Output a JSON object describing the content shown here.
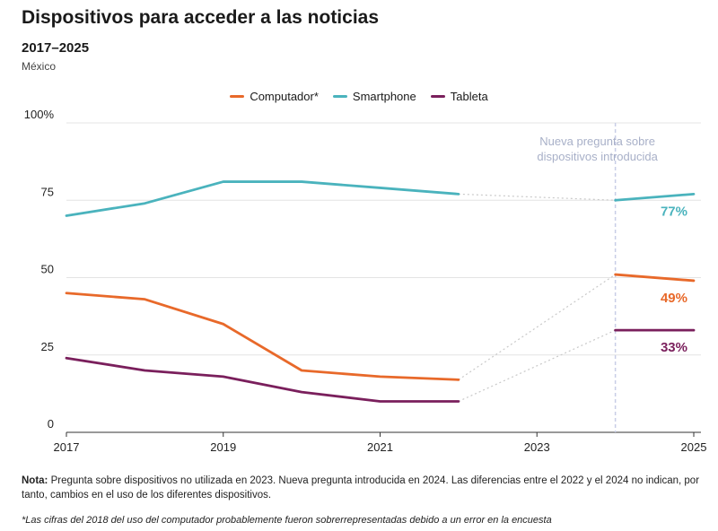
{
  "header": {
    "title": "Dispositivos para acceder a las noticias",
    "subtitle": "2017–2025",
    "region": "México"
  },
  "legend": [
    {
      "label": "Computador*",
      "color": "#e8692a"
    },
    {
      "label": "Smartphone",
      "color": "#4ab3bd"
    },
    {
      "label": "Tableta",
      "color": "#7a1f5c"
    }
  ],
  "chart_data": {
    "type": "line",
    "title": "Dispositivos para acceder a las noticias",
    "xlabel": "",
    "ylabel": "",
    "xlim": [
      2017,
      2025
    ],
    "ylim": [
      0,
      100
    ],
    "x_ticks": [
      "2017",
      "2019",
      "2021",
      "2023",
      "2025"
    ],
    "y_ticks": [
      "0",
      "25",
      "50",
      "75",
      "100%"
    ],
    "annotation": {
      "text_line1": "Nueva pregunta sobre",
      "text_line2": "dispositivos introducida",
      "x": 2024
    },
    "series": [
      {
        "name": "Computador*",
        "color": "#e8692a",
        "before": {
          "x": [
            2017,
            2018,
            2019,
            2020,
            2021,
            2022
          ],
          "values": [
            45,
            43,
            35,
            20,
            18,
            17
          ]
        },
        "after": {
          "x": [
            2024,
            2025
          ],
          "values": [
            51,
            49
          ]
        },
        "end_label": "49%"
      },
      {
        "name": "Smartphone",
        "color": "#4ab3bd",
        "before": {
          "x": [
            2017,
            2018,
            2019,
            2020,
            2021,
            2022
          ],
          "values": [
            70,
            74,
            81,
            81,
            79,
            77
          ]
        },
        "after": {
          "x": [
            2024,
            2025
          ],
          "values": [
            75,
            77
          ]
        },
        "end_label": "77%"
      },
      {
        "name": "Tableta",
        "color": "#7a1f5c",
        "before": {
          "x": [
            2017,
            2018,
            2019,
            2020,
            2021,
            2022
          ],
          "values": [
            24,
            20,
            18,
            13,
            10,
            10
          ]
        },
        "after": {
          "x": [
            2024,
            2025
          ],
          "values": [
            33,
            33
          ]
        },
        "end_label": "33%"
      }
    ]
  },
  "notes": {
    "note_label": "Nota:",
    "note_text": " Pregunta sobre dispositivos no utilizada en 2023. Nueva pregunta introducida en 2024. Las diferencias entre el 2022 y el 2024 no indican, por tanto, cambios en el uso de los diferentes dispositivos.",
    "footnote": "*Las cifras del 2018 del uso del computador probablemente fueron sobrerrepresentadas debido a un error en la encuesta"
  }
}
